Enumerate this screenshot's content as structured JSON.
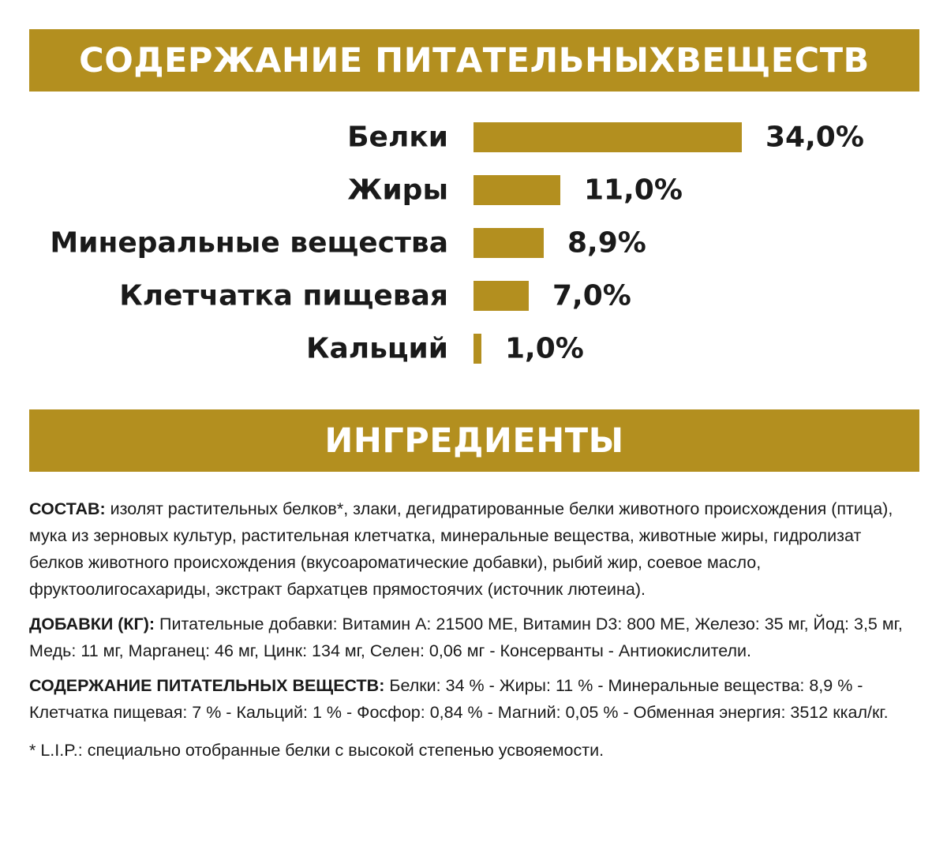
{
  "banners": {
    "nutrients_title": "СОДЕРЖАНИЕ ПИТАТЕЛЬНЫХВЕЩЕСТВ",
    "ingredients_title": "ИНГРЕДИЕНТЫ"
  },
  "colors": {
    "accent": "#b38f1f",
    "text": "#1a1a1a",
    "background": "#ffffff"
  },
  "chart_data": {
    "type": "bar",
    "orientation": "horizontal",
    "categories": [
      "Белки",
      "Жиры",
      "Минеральные вещества",
      "Клетчатка пищевая",
      "Кальций"
    ],
    "values": [
      34.0,
      11.0,
      8.9,
      7.0,
      1.0
    ],
    "value_labels": [
      "34,0%",
      "11,0%",
      "8,9%",
      "7,0%",
      "1,0%"
    ],
    "unit": "%",
    "bar_color": "#b38f1f",
    "xlim": [
      0,
      34
    ],
    "grid": false,
    "legend": "none"
  },
  "ingredients": {
    "composition": {
      "label": "СОСТАВ:",
      "text": " изолят растительных белков*, злаки, дегидратированные белки животного происхождения (птица), мука из зерновых культур, растительная клетчатка, минеральные вещества, животные жиры, гидролизат белков животного происхождения (вкусоароматические добавки), рыбий жир, соевое масло, фруктоолигосахариды, экстракт бархатцев прямостоячих (источник лютеина)."
    },
    "additives": {
      "label": "ДОБАВКИ (КГ):",
      "text": " Питательные добавки: Витамин А: 21500 МЕ, Витамин D3: 800 МЕ, Железо: 35 мг, Йод: 3,5 мг, Медь: 11 мг, Марганец: 46 мг, Цинк: 134 мг, Селен: 0,06 мг - Консерванты - Антиокислители."
    },
    "nutrients": {
      "label": "СОДЕРЖАНИЕ ПИТАТЕЛЬНЫХ ВЕЩЕСТВ:",
      "text": " Белки: 34 % - Жиры: 11 % - Минеральные вещества: 8,9 % - Клетчатка пищевая: 7 % - Кальций: 1 % - Фосфор: 0,84 % - Магний: 0,05 % - Обменная энергия: 3512 ккал/кг."
    },
    "footnote": "* L.I.P.: специально отобранные белки с высокой степенью усвояемости."
  }
}
